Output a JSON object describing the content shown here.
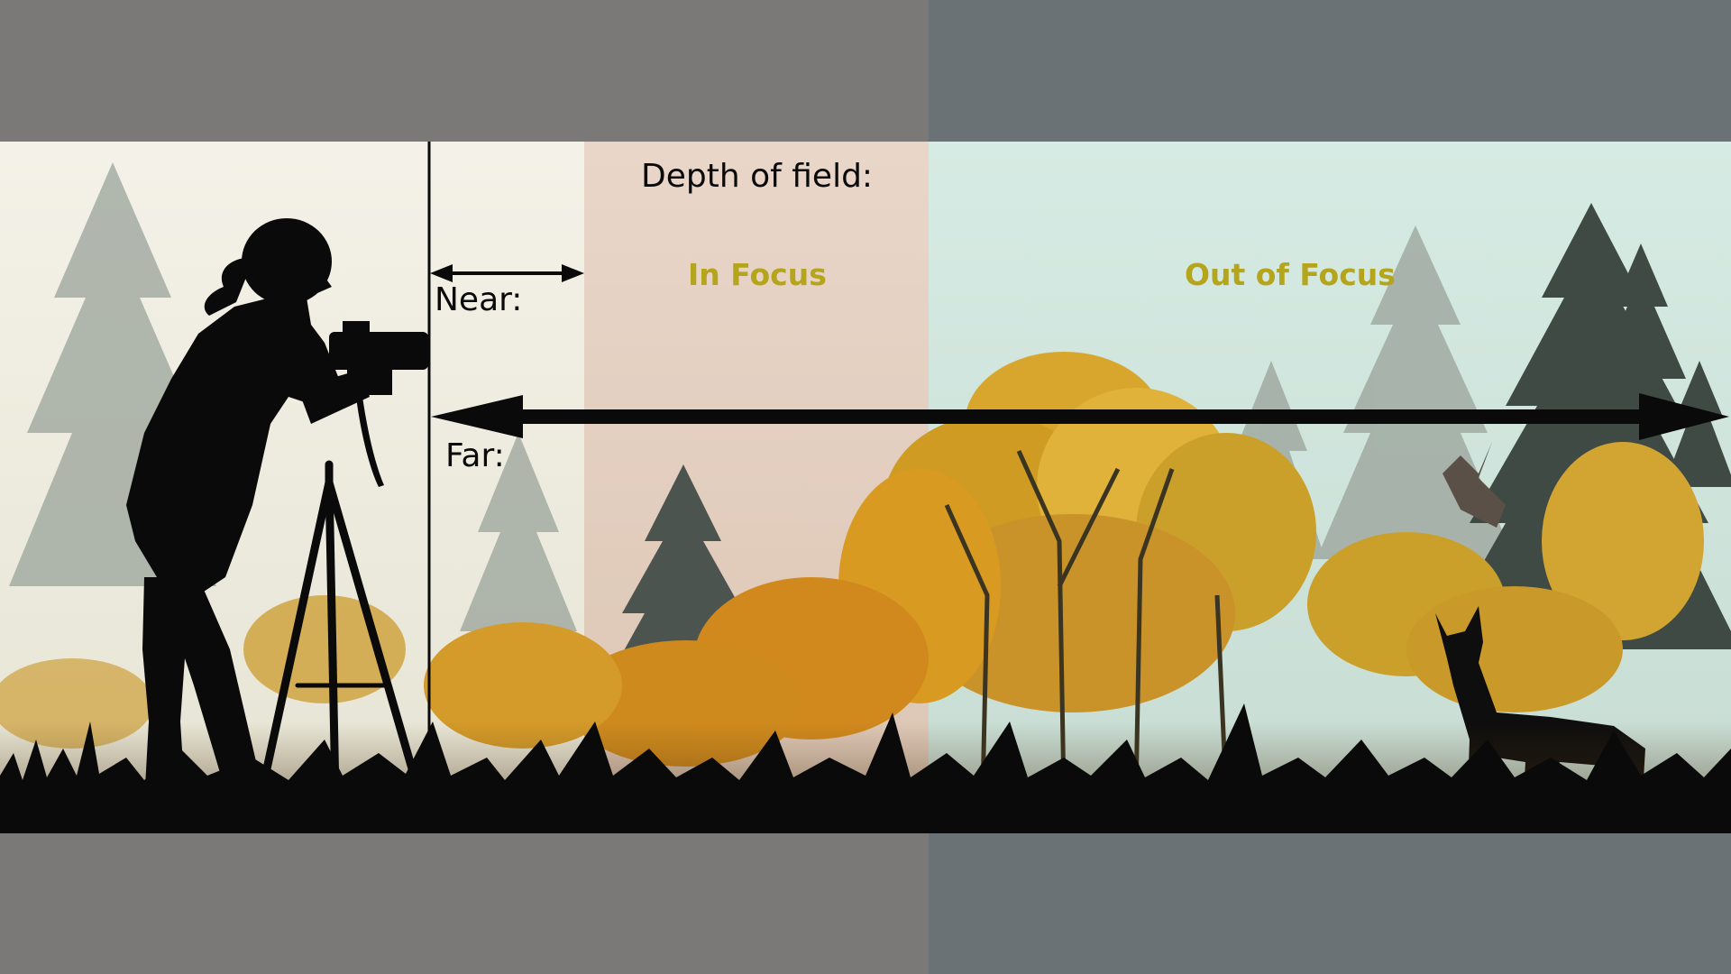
{
  "diagram": {
    "title": "Depth of field:",
    "near_label": "Near:",
    "far_label": "Far:",
    "in_focus_label": "In Focus",
    "out_of_focus_label": "Out of Focus"
  },
  "colors": {
    "letterbox_left": "#7b7878",
    "letterbox_right": "#6a7275",
    "sky_near": "#f3f1e6",
    "sky_in_focus": "#e8d5c8",
    "sky_out_of_focus": "#d3e7df",
    "focus_label": "#b5a51c",
    "tree_foreground": "#46504a",
    "tree_background": "#8c968e",
    "foliage_gold": "#d9a52a",
    "silhouette": "#0a0a0a"
  },
  "icons": {
    "photographer": "photographer-silhouette-icon",
    "tripod": "tripod-icon",
    "camera": "camera-icon",
    "fox": "fox-silhouette-icon",
    "bird": "bird-silhouette-icon"
  }
}
